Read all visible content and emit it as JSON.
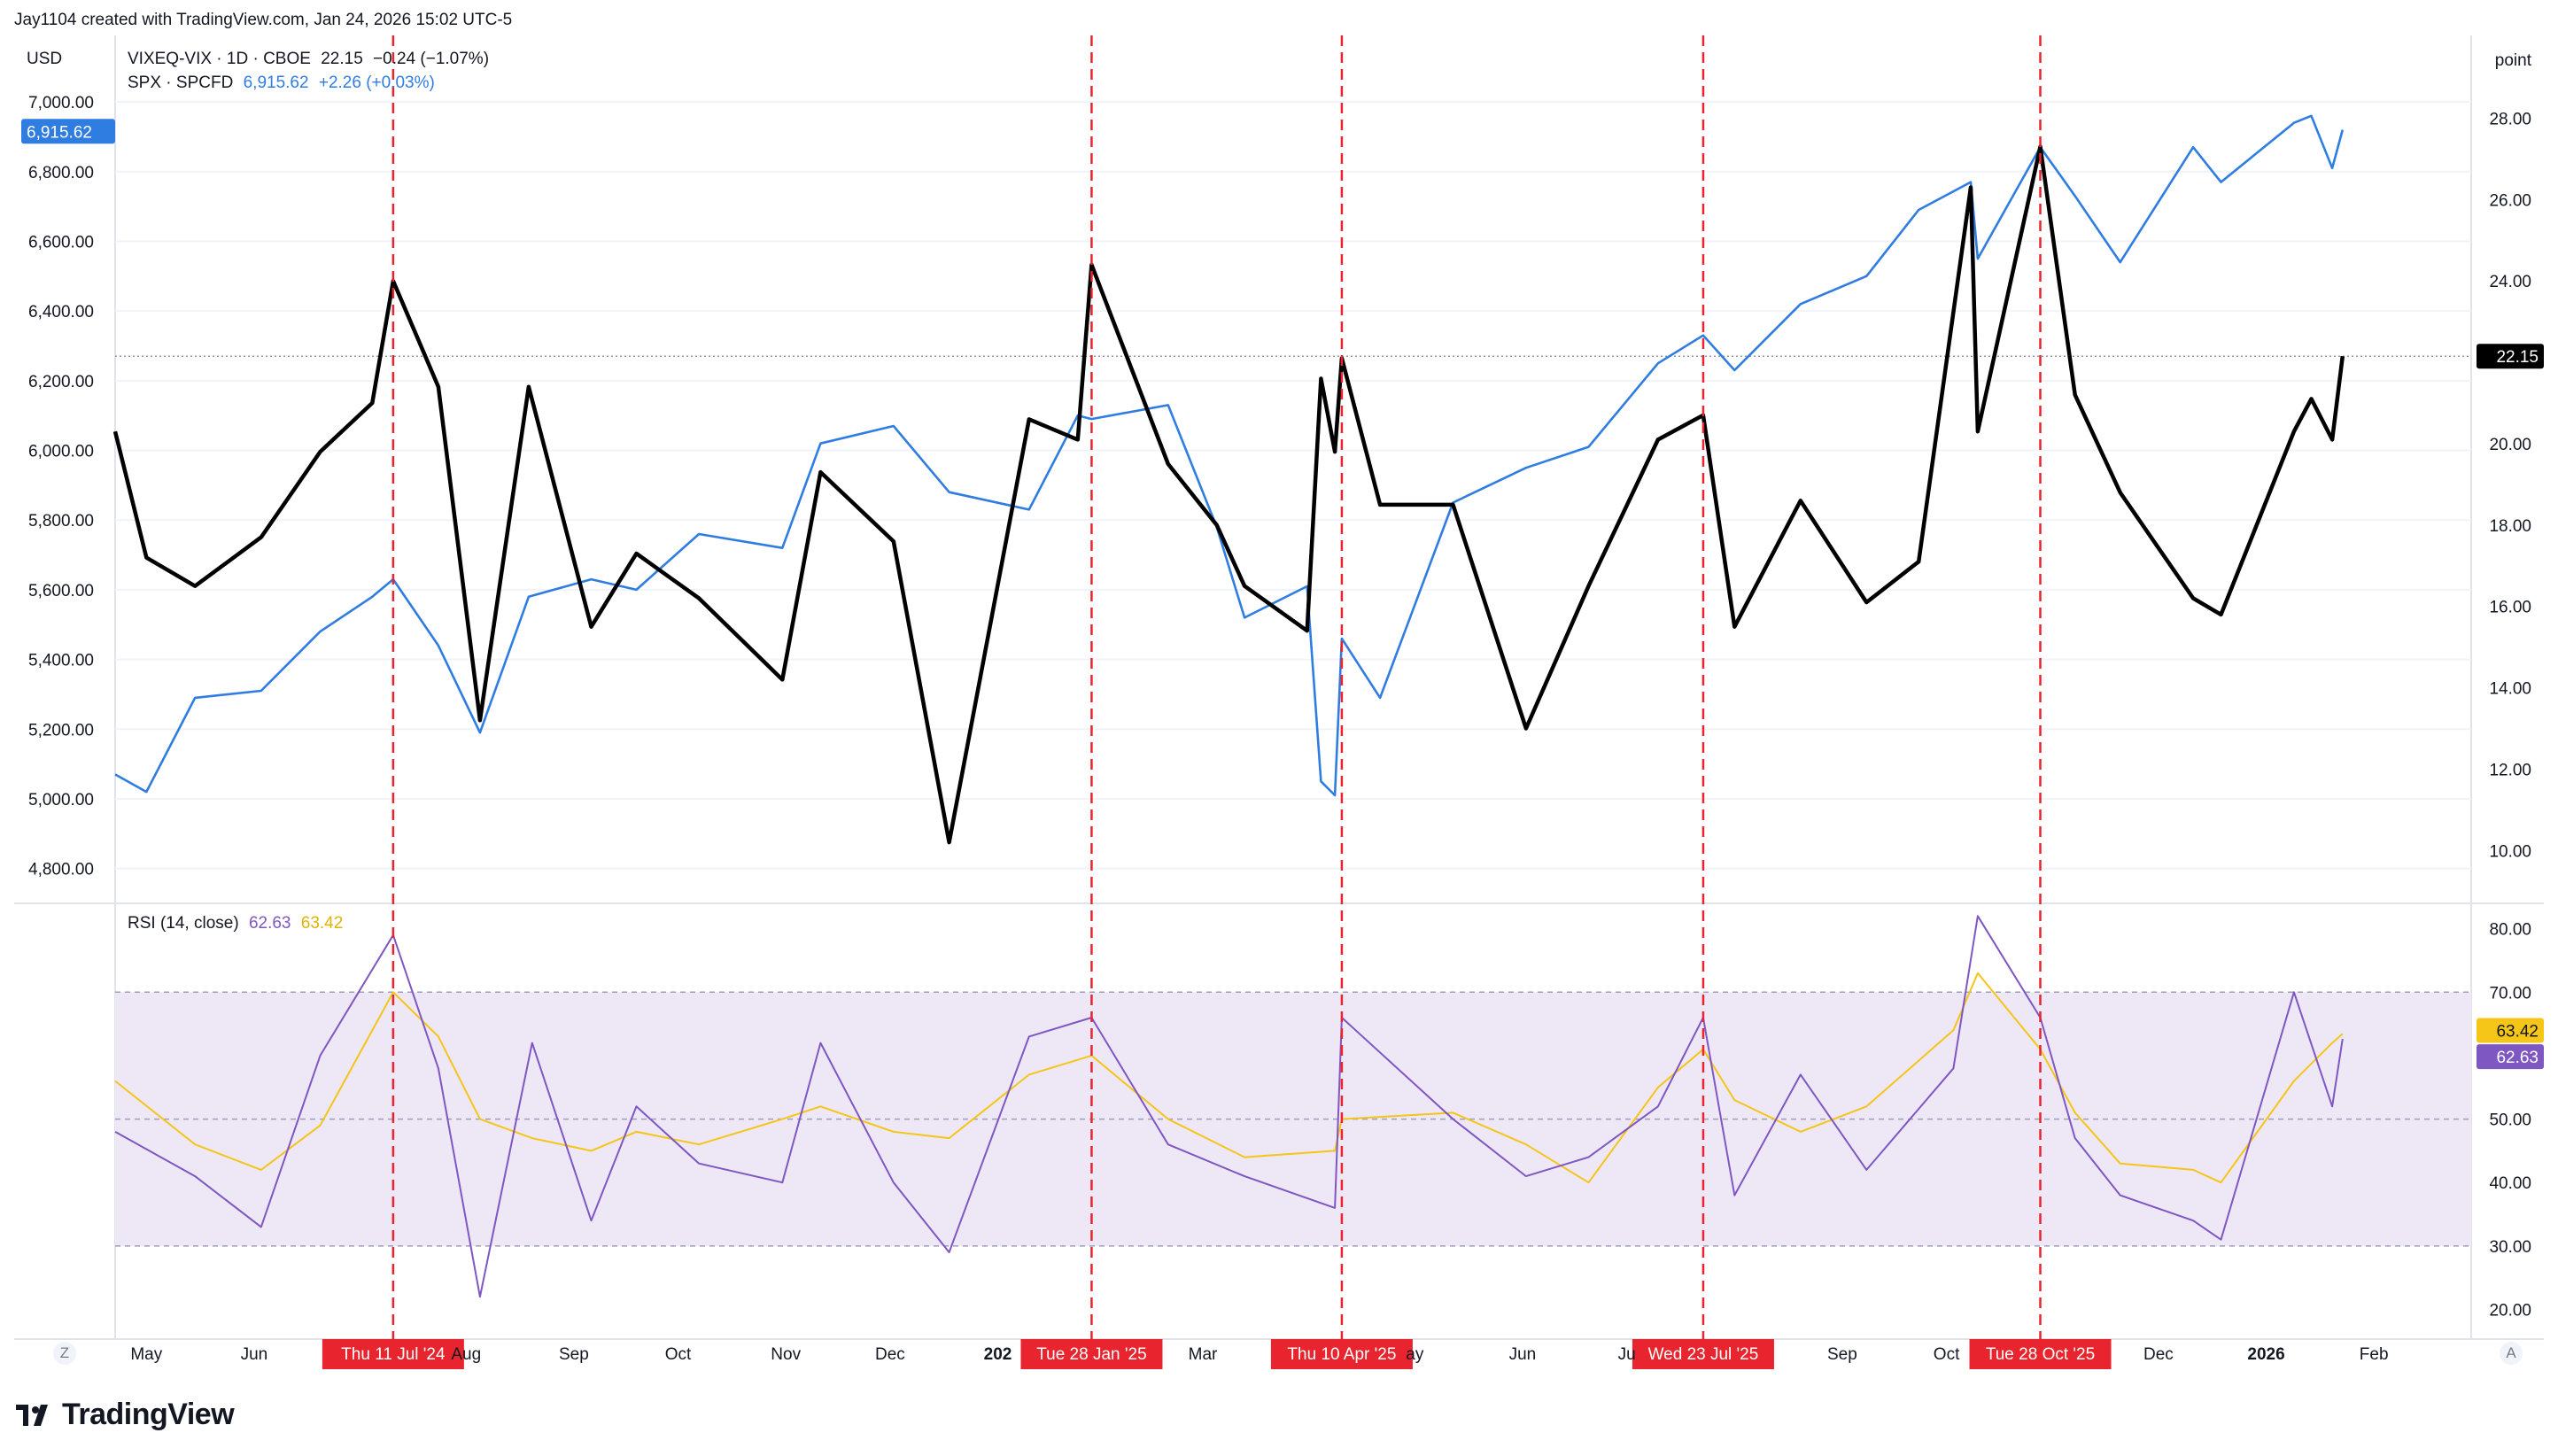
{
  "attribution": "Jay1104 created with TradingView.com, Jan 24, 2026 15:02 UTC-5",
  "brand": {
    "name": "TradingView"
  },
  "legend": {
    "vix": {
      "symbol": "VIXEQ-VIX · 1D · CBOE",
      "last": "22.15",
      "change": "−0.24 (−1.07%)"
    },
    "spx": {
      "symbol": "SPX · SPCFD",
      "last": "6,915.62",
      "change": "+2.26 (+0.03%)"
    },
    "rsi": {
      "label": "RSI (14, close)",
      "value": "62.63",
      "ma_value": "63.42"
    }
  },
  "corner_buttons": {
    "zoom": "Z",
    "auto": "A"
  },
  "colors": {
    "spx": "#2f7de1",
    "vix": "#000000",
    "rsi": "#7e57c2",
    "rsi_ma": "#f5c518",
    "rsi_band_fill": "#ede7f6",
    "event_line": "#e8252e",
    "event_label_bg": "#e8252e",
    "grid": "#f0f3fa",
    "axis_text": "#131722"
  },
  "chart_data": [
    {
      "type": "line",
      "panel": "price",
      "left_axis": {
        "label": "USD",
        "min": 4700,
        "max": 7140,
        "ticks": [
          "4,800.00",
          "5,000.00",
          "5,200.00",
          "5,400.00",
          "5,600.00",
          "5,800.00",
          "6,000.00",
          "6,200.00",
          "6,400.00",
          "6,600.00",
          "6,800.00",
          "7,000.00"
        ],
        "tick_values": [
          4800,
          5000,
          5200,
          5400,
          5600,
          5800,
          6000,
          6200,
          6400,
          6600,
          6800,
          7000
        ],
        "last_value_label": "6,915.62",
        "last_value": 6915.62
      },
      "right_axis": {
        "label": "point",
        "min": 8.7,
        "max": 29.6,
        "ticks": [
          "10.00",
          "12.00",
          "14.00",
          "16.00",
          "18.00",
          "20.00",
          "22.00",
          "24.00",
          "26.00",
          "28.00"
        ],
        "tick_values": [
          10,
          12,
          14,
          16,
          18,
          20,
          22,
          24,
          26,
          28
        ],
        "last_value_label": "22.15",
        "last_value": 22.15
      },
      "x": [
        "2024-04-22",
        "2024-05-01",
        "2024-05-15",
        "2024-06-03",
        "2024-06-20",
        "2024-07-05",
        "2024-07-11",
        "2024-07-24",
        "2024-08-05",
        "2024-08-19",
        "2024-09-06",
        "2024-09-19",
        "2024-10-07",
        "2024-10-31",
        "2024-11-11",
        "2024-12-02",
        "2024-12-18",
        "2025-01-10",
        "2025-01-24",
        "2025-01-28",
        "2025-02-19",
        "2025-03-05",
        "2025-03-13",
        "2025-03-31",
        "2025-04-04",
        "2025-04-08",
        "2025-04-10",
        "2025-04-21",
        "2025-05-12",
        "2025-06-02",
        "2025-06-20",
        "2025-07-10",
        "2025-07-23",
        "2025-08-01",
        "2025-08-20",
        "2025-09-08",
        "2025-09-23",
        "2025-10-08",
        "2025-10-10",
        "2025-10-28",
        "2025-11-07",
        "2025-11-20",
        "2025-12-11",
        "2025-12-19",
        "2026-01-09",
        "2026-01-14",
        "2026-01-20",
        "2026-01-23"
      ],
      "series": [
        {
          "name": "SPX · SPCFD",
          "axis": "left",
          "values": [
            5070,
            5020,
            5290,
            5310,
            5480,
            5580,
            5630,
            5440,
            5190,
            5580,
            5630,
            5600,
            5760,
            5720,
            6020,
            6070,
            5880,
            5830,
            6100,
            6090,
            6130,
            5780,
            5520,
            5610,
            5050,
            5010,
            5460,
            5290,
            5850,
            5950,
            6010,
            6250,
            6330,
            6230,
            6420,
            6500,
            6690,
            6770,
            6550,
            6870,
            6730,
            6540,
            6870,
            6770,
            6940,
            6960,
            6810,
            6920
          ]
        },
        {
          "name": "VIXEQ-VIX · 1D · CBOE",
          "axis": "right",
          "values": [
            20.3,
            17.2,
            16.5,
            17.7,
            19.8,
            21.0,
            24.0,
            21.4,
            13.2,
            21.4,
            15.5,
            17.3,
            16.2,
            14.2,
            19.3,
            17.6,
            10.2,
            20.6,
            20.1,
            24.4,
            19.5,
            18.0,
            16.5,
            15.4,
            21.6,
            19.8,
            22.1,
            18.5,
            18.5,
            13.0,
            16.5,
            20.1,
            20.7,
            15.5,
            18.6,
            16.1,
            17.1,
            26.3,
            20.3,
            27.3,
            21.2,
            18.8,
            16.2,
            15.8,
            20.3,
            21.1,
            20.1,
            22.15
          ]
        }
      ],
      "events": [
        "Thu 11 Jul '24",
        "Tue 28 Jan '25",
        "Thu 10 Apr '25",
        "Wed 23 Jul '25",
        "Tue 28 Oct '25"
      ],
      "event_dates": [
        "2024-07-11",
        "2025-01-28",
        "2025-04-10",
        "2025-07-23",
        "2025-10-28"
      ],
      "x_ticks": [
        "May",
        "Jun",
        "Aug",
        "Sep",
        "Oct",
        "Nov",
        "Dec",
        "202",
        "Mar",
        "ay",
        "Jun",
        "Ju",
        "Sep",
        "Oct",
        "Dec",
        "2026",
        "Feb"
      ],
      "x_tick_dates": [
        "2024-05-01",
        "2024-06-01",
        "2024-08-01",
        "2024-09-01",
        "2024-10-01",
        "2024-11-01",
        "2024-12-01",
        "2025-01-01",
        "2025-03-01",
        "2025-05-01",
        "2025-06-01",
        "2025-07-01",
        "2025-09-01",
        "2025-10-01",
        "2025-12-01",
        "2026-01-01",
        "2026-02-01"
      ],
      "x_range": [
        "2024-04-22",
        "2026-03-01"
      ]
    },
    {
      "type": "line",
      "panel": "rsi",
      "axis": {
        "min": 17,
        "max": 84,
        "ticks": [
          "20.00",
          "30.00",
          "40.00",
          "50.00",
          "60.00",
          "70.00",
          "80.00"
        ],
        "tick_values": [
          20,
          30,
          40,
          50,
          60,
          70,
          80
        ]
      },
      "bands": {
        "upper": 70,
        "middle": 50,
        "lower": 30
      },
      "x": [
        "2024-04-22",
        "2024-05-15",
        "2024-06-03",
        "2024-06-20",
        "2024-07-11",
        "2024-07-24",
        "2024-08-05",
        "2024-08-20",
        "2024-09-06",
        "2024-09-19",
        "2024-10-07",
        "2024-10-31",
        "2024-11-11",
        "2024-12-02",
        "2024-12-18",
        "2025-01-10",
        "2025-01-28",
        "2025-02-19",
        "2025-03-13",
        "2025-04-08",
        "2025-04-10",
        "2025-05-12",
        "2025-06-02",
        "2025-06-20",
        "2025-07-10",
        "2025-07-23",
        "2025-08-01",
        "2025-08-20",
        "2025-09-08",
        "2025-10-03",
        "2025-10-10",
        "2025-10-28",
        "2025-11-07",
        "2025-11-20",
        "2025-12-11",
        "2025-12-19",
        "2026-01-09",
        "2026-01-20",
        "2026-01-23"
      ],
      "series": [
        {
          "name": "RSI (14, close)",
          "values": [
            48,
            41,
            33,
            60,
            79,
            58,
            22,
            62,
            34,
            52,
            43,
            40,
            62,
            40,
            29,
            63,
            66,
            46,
            41,
            36,
            66,
            50,
            41,
            44,
            52,
            66,
            38,
            57,
            42,
            58,
            82,
            66,
            47,
            38,
            34,
            31,
            70,
            52,
            62.63
          ]
        },
        {
          "name": "63.42",
          "values": [
            56,
            46,
            42,
            49,
            70,
            63,
            50,
            47,
            45,
            48,
            46,
            50,
            52,
            48,
            47,
            57,
            60,
            50,
            44,
            45,
            50,
            51,
            46,
            40,
            55,
            61,
            53,
            48,
            52,
            64,
            73,
            61,
            51,
            43,
            42,
            40,
            56,
            62,
            63.42
          ]
        }
      ]
    }
  ]
}
